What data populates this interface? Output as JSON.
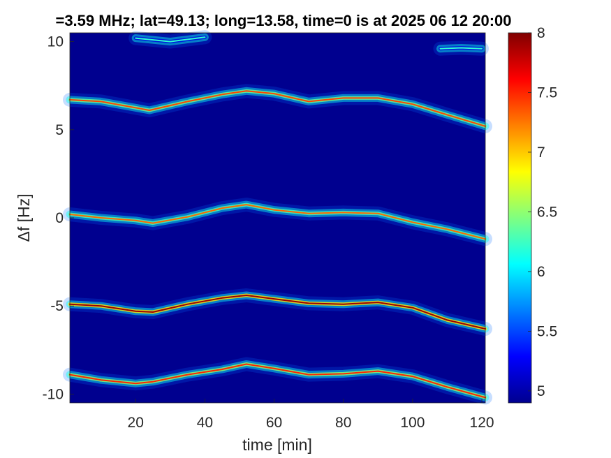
{
  "chart_data": {
    "type": "heatmap",
    "title": "=3.59 MHz;  lat=49.13; long=13.58, time=0 is at 2025 06 12 20:00",
    "xlabel": "time [min]",
    "ylabel": "Δf [Hz]",
    "xlim": [
      1,
      121
    ],
    "ylim": [
      -10.5,
      10.5
    ],
    "x_ticks": [
      20,
      40,
      60,
      80,
      100,
      120
    ],
    "x_tick_labels": [
      "20",
      "40",
      "60",
      "80",
      "100",
      "120"
    ],
    "y_ticks": [
      10,
      5,
      0,
      -5,
      -10
    ],
    "y_tick_labels": [
      "10",
      "5",
      "0",
      "-5",
      "-10"
    ],
    "colorbar": {
      "range": [
        4.9,
        8
      ],
      "ticks": [
        5,
        5.5,
        6,
        6.5,
        7,
        7.5,
        8
      ],
      "tick_labels": [
        "5",
        "5.5",
        "6",
        "6.5",
        "7",
        "7.5",
        "8"
      ],
      "colormap": "jet"
    },
    "background_color": "#00008f",
    "traces": [
      {
        "time": [
          1,
          10,
          20,
          24,
          35,
          45,
          52,
          60,
          70,
          80,
          90,
          100,
          110,
          121
        ],
        "df": [
          6.7,
          6.6,
          6.25,
          6.1,
          6.6,
          7.0,
          7.2,
          7.05,
          6.6,
          6.8,
          6.8,
          6.45,
          5.85,
          5.2
        ],
        "intensity": 6.8
      },
      {
        "time": [
          1,
          10,
          20,
          25,
          35,
          45,
          52,
          60,
          70,
          80,
          90,
          100,
          110,
          121
        ],
        "df": [
          0.2,
          0.0,
          -0.15,
          -0.3,
          0.05,
          0.55,
          0.75,
          0.45,
          0.25,
          0.3,
          0.25,
          -0.25,
          -0.65,
          -1.2
        ],
        "intensity": 6.7
      },
      {
        "time": [
          1,
          10,
          20,
          25,
          35,
          45,
          52,
          60,
          70,
          80,
          90,
          100,
          110,
          121
        ],
        "df": [
          -4.9,
          -5.0,
          -5.3,
          -5.35,
          -4.9,
          -4.55,
          -4.4,
          -4.6,
          -4.85,
          -4.9,
          -4.8,
          -5.1,
          -5.8,
          -6.3
        ],
        "intensity": 7.3
      },
      {
        "time": [
          1,
          10,
          20,
          25,
          35,
          45,
          52,
          60,
          70,
          80,
          90,
          100,
          110,
          121
        ],
        "df": [
          -8.9,
          -9.2,
          -9.4,
          -9.3,
          -8.9,
          -8.6,
          -8.3,
          -8.55,
          -8.9,
          -8.85,
          -8.7,
          -9.0,
          -9.6,
          -10.2
        ],
        "intensity": 6.9
      },
      {
        "time": [
          20,
          30,
          40
        ],
        "df": [
          10.2,
          10.0,
          10.25
        ],
        "intensity": 5.6
      },
      {
        "time": [
          108,
          114,
          120
        ],
        "df": [
          9.6,
          9.65,
          9.6
        ],
        "intensity": 5.6
      }
    ]
  }
}
